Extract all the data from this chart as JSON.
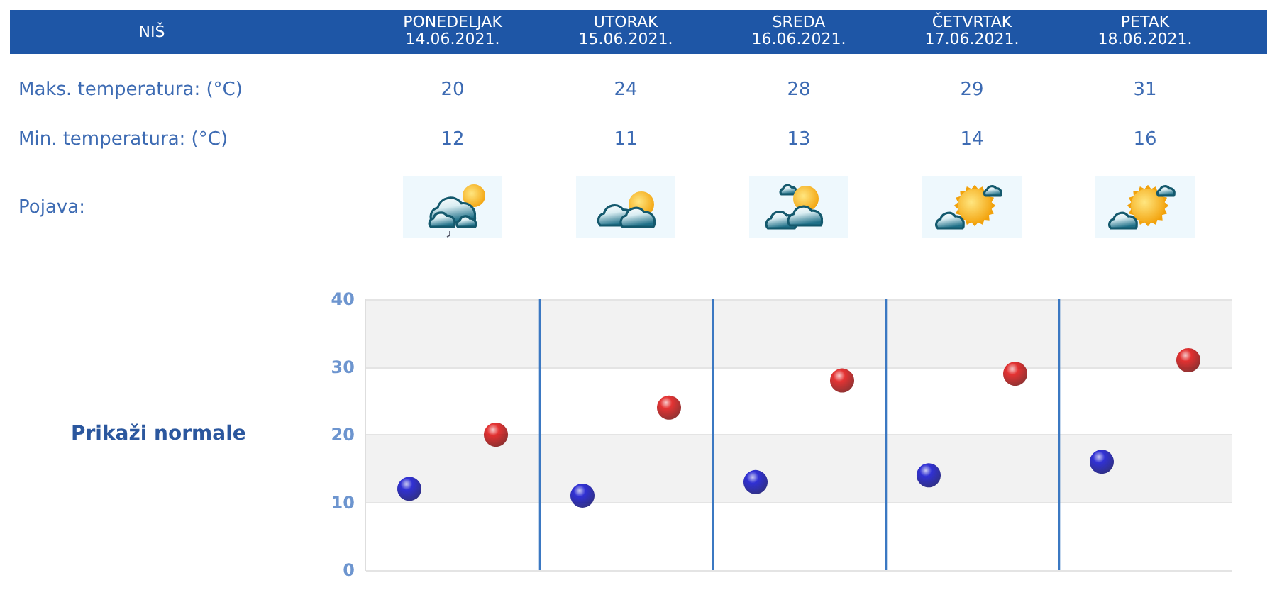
{
  "chart_data": {
    "type": "scatter",
    "title": "NIŠ",
    "categories": [
      null,
      null,
      null,
      null,
      null
    ],
    "series": [
      {
        "color": "#dd0000",
        "values": [
          20,
          24,
          28,
          29,
          31
        ]
      },
      {
        "color": "#0000cc",
        "values": [
          12,
          11,
          13,
          14,
          16
        ]
      }
    ],
    "ylim": [
      0,
      40
    ],
    "yticks": [
      0,
      10,
      20,
      30,
      40
    ],
    "grid": true,
    "marker": "circle",
    "data_labels": true,
    "annotations": [
      "PONEDELJAK\n14.06.2021.",
      "UTORAK\n15.06.2021.",
      "SREDA\n16.06.2021.",
      "ČETVRTAK\n17.06.2021.",
      "PETAK\n18.06.2021.",
      "Maks. temperatura: (°C)",
      "Min. temperatura: (°C)",
      "Pojava:",
      "Prikaži normale"
    ]
  }
}
